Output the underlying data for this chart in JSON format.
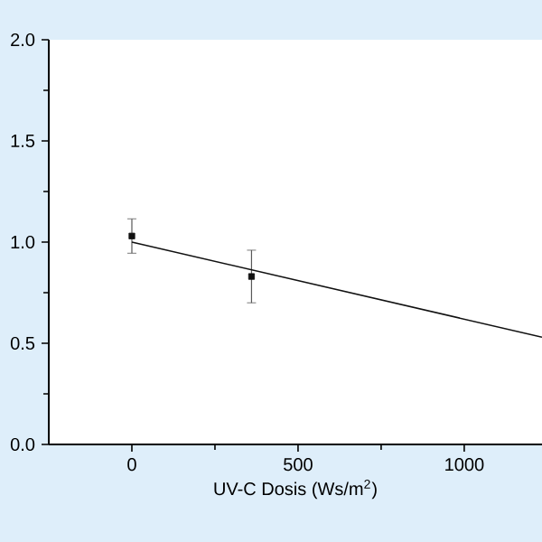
{
  "chart_data": {
    "type": "scatter",
    "xlabel": "UV-C Dosis (Ws/m$^{2}$)",
    "xlim": [
      -250,
      1234
    ],
    "xticks": [
      0,
      500,
      1000
    ],
    "ylim": [
      0,
      2
    ],
    "yticks": [
      {
        "value": 0,
        "label": "0.0"
      },
      {
        "value": 0.5,
        "label": "0.5"
      },
      {
        "value": 1,
        "label": "1.0"
      },
      {
        "value": 1.5,
        "label": "1.5"
      },
      {
        "value": 2,
        "label": "2.0"
      }
    ],
    "series": [
      {
        "color": "#111111",
        "x": [
          0,
          360
        ],
        "values": [
          1.03,
          0.83
        ],
        "errors": [
          0.085,
          0.13
        ],
        "marker": "square"
      },
      {
        "type": "line",
        "color": "#111111",
        "x": [
          0,
          1234
        ],
        "values": [
          1.0,
          0.53
        ],
        "line_style": "solid"
      }
    ]
  }
}
